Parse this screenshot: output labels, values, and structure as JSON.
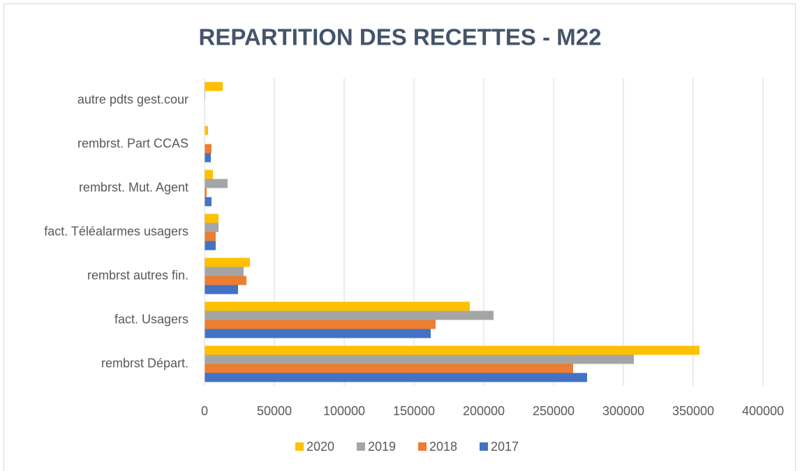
{
  "chart_data": {
    "type": "bar",
    "orientation": "horizontal",
    "title": "REPARTITION DES RECETTES - M22",
    "categories": [
      "rembrst Départ.",
      "fact. Usagers",
      "rembrst autres fin.",
      "fact. Téléalarmes usagers",
      "rembrst. Mut. Agent",
      "rembrst. Part CCAS",
      "autre pdts gest.cour"
    ],
    "series": [
      {
        "name": "2020",
        "color": "#ffc000",
        "values": [
          354500,
          190000,
          32500,
          10000,
          6000,
          2500,
          13000
        ]
      },
      {
        "name": "2019",
        "color": "#a5a5a5",
        "values": [
          307500,
          207000,
          28000,
          10000,
          16500,
          0,
          500
        ]
      },
      {
        "name": "2018",
        "color": "#ed7d31",
        "values": [
          264000,
          165500,
          30000,
          8000,
          1500,
          5000,
          0
        ]
      },
      {
        "name": "2017",
        "color": "#4472c4",
        "values": [
          274000,
          162000,
          24000,
          8000,
          5000,
          4500,
          0
        ]
      }
    ],
    "xlim": [
      0,
      400000
    ],
    "xticks": [
      0,
      50000,
      100000,
      150000,
      200000,
      250000,
      300000,
      350000,
      400000
    ],
    "grid": true,
    "legend": "bottom"
  }
}
